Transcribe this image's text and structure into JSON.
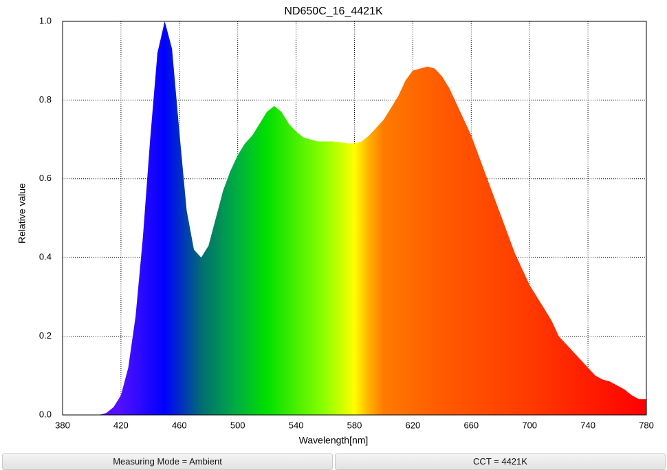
{
  "chart_data": {
    "type": "area",
    "title": "ND650C_16_4421K",
    "x_label": "Wavelength[nm]",
    "y_label": "Relative value",
    "x": [
      380,
      385,
      390,
      395,
      400,
      405,
      410,
      415,
      420,
      425,
      430,
      435,
      440,
      445,
      450,
      455,
      460,
      465,
      470,
      475,
      480,
      485,
      490,
      495,
      500,
      505,
      510,
      515,
      520,
      525,
      530,
      535,
      540,
      545,
      550,
      555,
      560,
      565,
      570,
      575,
      580,
      585,
      590,
      595,
      600,
      605,
      610,
      615,
      620,
      625,
      630,
      635,
      640,
      645,
      650,
      655,
      660,
      665,
      670,
      675,
      680,
      685,
      690,
      695,
      700,
      705,
      710,
      715,
      720,
      725,
      730,
      735,
      740,
      745,
      750,
      755,
      760,
      765,
      770,
      775,
      780
    ],
    "values": [
      0,
      0,
      0,
      0,
      0,
      0,
      0.005,
      0.02,
      0.05,
      0.12,
      0.25,
      0.45,
      0.7,
      0.92,
      1.0,
      0.93,
      0.72,
      0.52,
      0.42,
      0.4,
      0.43,
      0.5,
      0.57,
      0.62,
      0.66,
      0.69,
      0.71,
      0.74,
      0.77,
      0.785,
      0.77,
      0.74,
      0.72,
      0.705,
      0.7,
      0.695,
      0.695,
      0.695,
      0.693,
      0.69,
      0.69,
      0.695,
      0.71,
      0.73,
      0.75,
      0.78,
      0.81,
      0.85,
      0.875,
      0.88,
      0.885,
      0.88,
      0.86,
      0.83,
      0.79,
      0.75,
      0.71,
      0.66,
      0.61,
      0.56,
      0.51,
      0.46,
      0.41,
      0.37,
      0.33,
      0.3,
      0.27,
      0.24,
      0.2,
      0.18,
      0.16,
      0.14,
      0.12,
      0.1,
      0.09,
      0.085,
      0.075,
      0.065,
      0.05,
      0.04,
      0.04
    ],
    "xlim": [
      380,
      780
    ],
    "xticks": [
      380,
      420,
      460,
      500,
      540,
      580,
      620,
      660,
      700,
      740,
      780
    ],
    "ylim": [
      0,
      1
    ],
    "yticks": [
      {
        "value": 0,
        "label": "0.0"
      },
      0.2,
      0.4,
      0.6,
      0.8,
      {
        "value": 1,
        "label": "1.0"
      }
    ],
    "grid": true
  },
  "footer": {
    "mode": "Measuring Mode = Ambient",
    "cct": "CCT = 4421K"
  }
}
